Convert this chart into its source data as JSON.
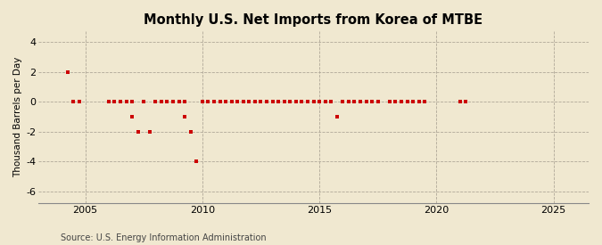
{
  "title": "Monthly U.S. Net Imports from Korea of MTBE",
  "ylabel": "Thousand Barrels per Day",
  "source": "Source: U.S. Energy Information Administration",
  "xlim": [
    2003.0,
    2026.5
  ],
  "ylim": [
    -6.8,
    4.8
  ],
  "yticks": [
    -6,
    -4,
    -2,
    0,
    2,
    4
  ],
  "xticks": [
    2005,
    2010,
    2015,
    2020,
    2025
  ],
  "background_color": "#f0e8d0",
  "plot_bg_color": "#f0e8d0",
  "marker_color": "#cc0000",
  "data_points": [
    [
      2004.25,
      2.0
    ],
    [
      2004.5,
      0.0
    ],
    [
      2004.75,
      0.0
    ],
    [
      2006.0,
      0.0
    ],
    [
      2006.25,
      0.0
    ],
    [
      2006.5,
      0.0
    ],
    [
      2006.75,
      0.0
    ],
    [
      2007.0,
      -1.0
    ],
    [
      2007.0,
      0.0
    ],
    [
      2007.25,
      -2.0
    ],
    [
      2007.5,
      0.0
    ],
    [
      2007.75,
      -2.0
    ],
    [
      2008.0,
      0.0
    ],
    [
      2008.25,
      0.0
    ],
    [
      2008.5,
      0.0
    ],
    [
      2008.75,
      0.0
    ],
    [
      2009.0,
      0.0
    ],
    [
      2009.25,
      0.0
    ],
    [
      2009.25,
      -1.0
    ],
    [
      2009.5,
      -2.0
    ],
    [
      2009.75,
      -4.0
    ],
    [
      2010.0,
      0.0
    ],
    [
      2010.25,
      0.0
    ],
    [
      2010.5,
      0.0
    ],
    [
      2010.75,
      0.0
    ],
    [
      2011.0,
      0.0
    ],
    [
      2011.25,
      0.0
    ],
    [
      2011.5,
      0.0
    ],
    [
      2011.75,
      0.0
    ],
    [
      2012.0,
      0.0
    ],
    [
      2012.25,
      0.0
    ],
    [
      2012.5,
      0.0
    ],
    [
      2012.75,
      0.0
    ],
    [
      2013.0,
      0.0
    ],
    [
      2013.25,
      0.0
    ],
    [
      2013.5,
      0.0
    ],
    [
      2013.75,
      0.0
    ],
    [
      2014.0,
      0.0
    ],
    [
      2014.25,
      0.0
    ],
    [
      2014.5,
      0.0
    ],
    [
      2014.75,
      0.0
    ],
    [
      2015.0,
      0.0
    ],
    [
      2015.25,
      0.0
    ],
    [
      2015.5,
      0.0
    ],
    [
      2015.75,
      -1.0
    ],
    [
      2016.0,
      0.0
    ],
    [
      2016.25,
      0.0
    ],
    [
      2016.5,
      0.0
    ],
    [
      2016.75,
      0.0
    ],
    [
      2017.0,
      0.0
    ],
    [
      2017.25,
      0.0
    ],
    [
      2017.5,
      0.0
    ],
    [
      2018.0,
      0.0
    ],
    [
      2018.25,
      0.0
    ],
    [
      2018.5,
      0.0
    ],
    [
      2018.75,
      0.0
    ],
    [
      2019.0,
      0.0
    ],
    [
      2019.25,
      0.0
    ],
    [
      2019.5,
      0.0
    ],
    [
      2021.0,
      0.0
    ],
    [
      2021.25,
      0.0
    ]
  ]
}
